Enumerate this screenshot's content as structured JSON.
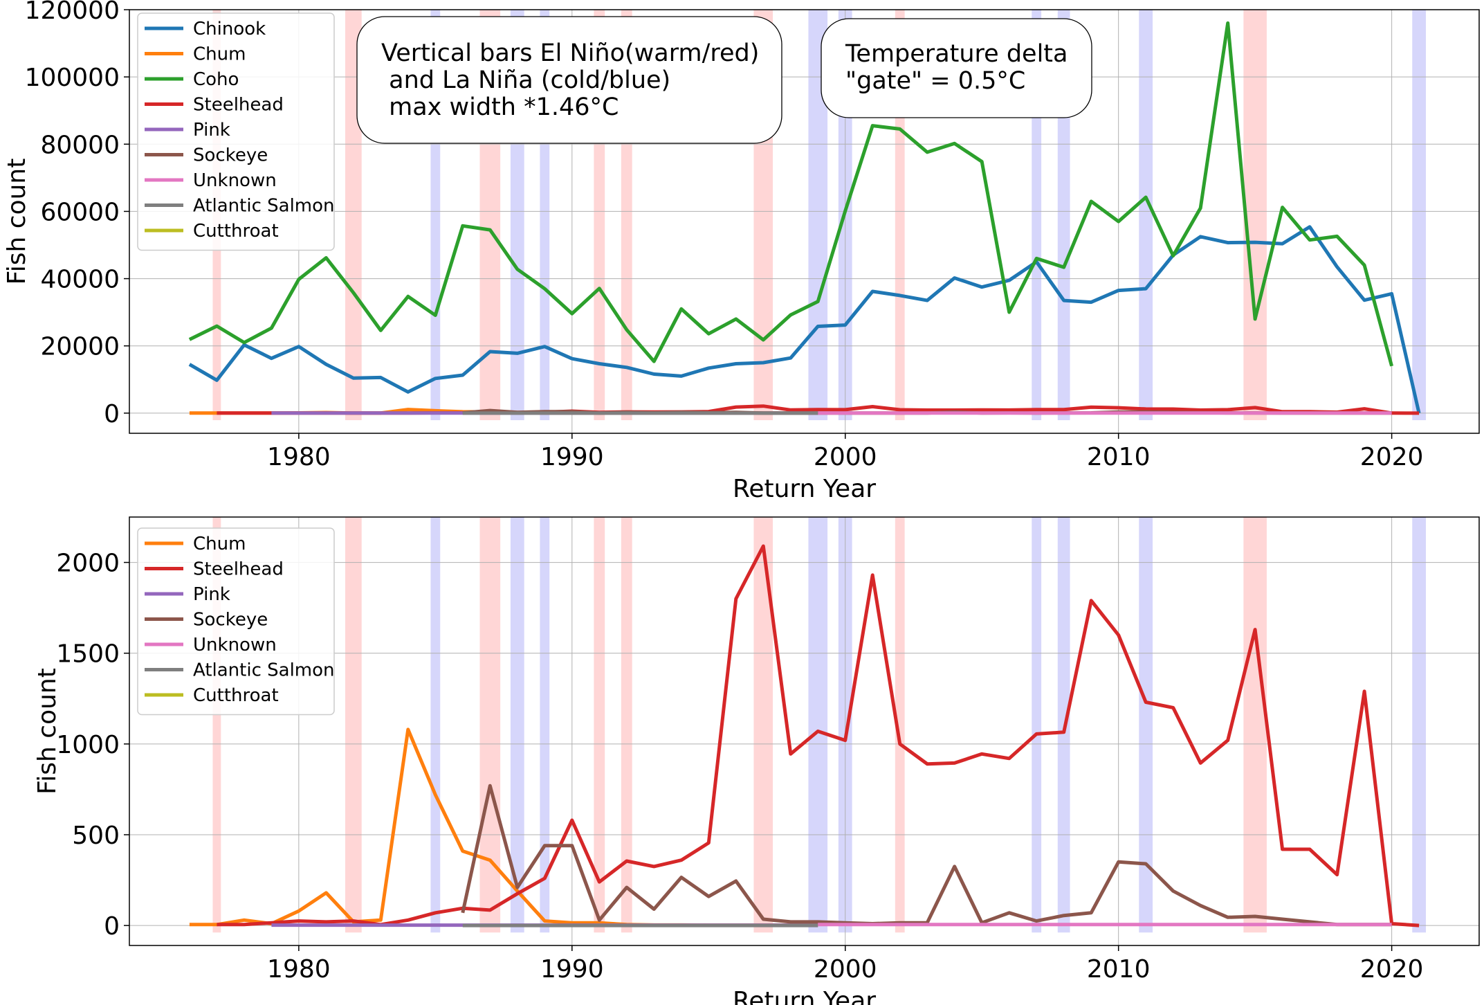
{
  "chart_data": [
    {
      "type": "line",
      "title": "",
      "xlabel": "Return Year",
      "ylabel": "Fish count",
      "xlim": [
        1973.8,
        2023.2
      ],
      "ylim": [
        -6000,
        120000
      ],
      "xticks": [
        1980,
        1990,
        2000,
        2010,
        2020
      ],
      "yticks": [
        0,
        20000,
        40000,
        60000,
        80000,
        100000,
        120000
      ],
      "grid": true,
      "legend_position": "upper-left",
      "annotations": [
        {
          "id": "bars-note",
          "lines": [
            "Vertical bars El Niño(warm/red)",
            " and La Niña (cold/blue)",
            " max width *1.46°C"
          ]
        },
        {
          "id": "gate-note",
          "lines": [
            "Temperature delta",
            "\"gate\" = 0.5°C"
          ]
        }
      ],
      "series": [
        {
          "name": "Chinook",
          "color": "#1f77b4",
          "x": [
            1976,
            1977,
            1978,
            1979,
            1980,
            1981,
            1982,
            1983,
            1984,
            1985,
            1986,
            1987,
            1988,
            1989,
            1990,
            1991,
            1992,
            1993,
            1994,
            1995,
            1996,
            1997,
            1998,
            1999,
            2000,
            2001,
            2002,
            2003,
            2004,
            2005,
            2006,
            2007,
            2008,
            2009,
            2010,
            2011,
            2012,
            2013,
            2014,
            2015,
            2016,
            2017,
            2018,
            2019,
            2020,
            2021
          ],
          "y": [
            14500,
            9800,
            20300,
            16300,
            19800,
            14500,
            10400,
            10600,
            6300,
            10300,
            11300,
            18300,
            17800,
            19800,
            16200,
            14700,
            13600,
            11600,
            11000,
            13400,
            14700,
            15000,
            16400,
            25800,
            26200,
            36200,
            35000,
            33500,
            40200,
            37500,
            39500,
            45000,
            33500,
            33000,
            36500,
            37000,
            47000,
            52500,
            50700,
            50800,
            50400,
            55400,
            43500,
            33600,
            35500,
            0
          ]
        },
        {
          "name": "Chum",
          "color": "#ff7f0e",
          "x": [
            1976,
            1977,
            1978,
            1979,
            1980,
            1981,
            1982,
            1983,
            1984,
            1985,
            1986,
            1987,
            1988,
            1989,
            1990,
            1991,
            1992,
            1993,
            1994,
            1995,
            1996,
            1997,
            1998,
            1999
          ],
          "y": [
            5,
            5,
            30,
            10,
            80,
            180,
            20,
            30,
            1080,
            720,
            410,
            360,
            190,
            25,
            15,
            15,
            5,
            3,
            3,
            2,
            2,
            2,
            2,
            2
          ]
        },
        {
          "name": "Coho",
          "color": "#2ca02c",
          "x": [
            1976,
            1977,
            1978,
            1979,
            1980,
            1981,
            1982,
            1983,
            1984,
            1985,
            1986,
            1987,
            1988,
            1989,
            1990,
            1991,
            1992,
            1993,
            1994,
            1995,
            1996,
            1997,
            1998,
            1999,
            2000,
            2001,
            2002,
            2003,
            2004,
            2005,
            2006,
            2007,
            2008,
            2009,
            2010,
            2011,
            2012,
            2013,
            2014,
            2015,
            2016,
            2017,
            2018,
            2019,
            2020
          ],
          "y": [
            21900,
            25900,
            21000,
            25300,
            39800,
            46200,
            35800,
            24600,
            34700,
            29100,
            55700,
            54500,
            42800,
            37000,
            29600,
            37100,
            24800,
            15400,
            31000,
            23600,
            28000,
            21800,
            29200,
            33200,
            60100,
            85500,
            84500,
            77600,
            80200,
            74800,
            30000,
            46000,
            43400,
            63000,
            57000,
            64200,
            46800,
            61000,
            116000,
            28000,
            61200,
            51500,
            52600,
            44000,
            14000
          ]
        },
        {
          "name": "Steelhead",
          "color": "#d62728",
          "x": [
            1977,
            1978,
            1979,
            1980,
            1981,
            1982,
            1983,
            1984,
            1985,
            1986,
            1987,
            1988,
            1989,
            1990,
            1991,
            1992,
            1993,
            1994,
            1995,
            1996,
            1997,
            1998,
            1999,
            2000,
            2001,
            2002,
            2003,
            2004,
            2005,
            2006,
            2007,
            2008,
            2009,
            2010,
            2011,
            2012,
            2013,
            2014,
            2015,
            2016,
            2017,
            2018,
            2019,
            2020,
            2021
          ],
          "y": [
            5,
            5,
            15,
            25,
            20,
            25,
            5,
            30,
            70,
            95,
            85,
            175,
            260,
            580,
            240,
            355,
            325,
            360,
            455,
            1800,
            2090,
            945,
            1070,
            1020,
            1930,
            1000,
            890,
            895,
            945,
            920,
            1055,
            1065,
            1790,
            1600,
            1230,
            1200,
            895,
            1020,
            1630,
            420,
            420,
            280,
            1290,
            10,
            0
          ]
        },
        {
          "name": "Pink",
          "color": "#9467bd",
          "x": [
            1979,
            1980,
            1981,
            1982,
            1983,
            1984,
            1985,
            1986,
            1987,
            1988,
            1989,
            1990,
            1991,
            1992,
            1993,
            1994,
            1995,
            1996,
            1997,
            1998,
            1999
          ],
          "y": [
            2,
            2,
            2,
            2,
            2,
            2,
            2,
            2,
            2,
            2,
            2,
            2,
            2,
            2,
            2,
            2,
            2,
            2,
            2,
            2,
            2
          ]
        },
        {
          "name": "Sockeye",
          "color": "#8c564b",
          "x": [
            1986,
            1987,
            1988,
            1989,
            1990,
            1991,
            1992,
            1993,
            1994,
            1995,
            1996,
            1997,
            1998,
            1999,
            2000,
            2001,
            2002,
            2003,
            2004,
            2005,
            2006,
            2007,
            2008,
            2009,
            2010,
            2011,
            2012,
            2013,
            2014,
            2015,
            2016,
            2017,
            2018,
            2019,
            2020
          ],
          "y": [
            70,
            770,
            210,
            440,
            440,
            30,
            210,
            90,
            265,
            160,
            245,
            35,
            20,
            20,
            15,
            10,
            15,
            15,
            325,
            15,
            70,
            25,
            55,
            70,
            350,
            340,
            190,
            110,
            45,
            50,
            35,
            20,
            5,
            5,
            5
          ]
        },
        {
          "name": "Unknown",
          "color": "#e377c2",
          "x": [
            1999,
            2000,
            2001,
            2002,
            2003,
            2004,
            2005,
            2006,
            2007,
            2008,
            2009,
            2010,
            2011,
            2012,
            2013,
            2014,
            2015,
            2016,
            2017,
            2018,
            2019,
            2020
          ],
          "y": [
            5,
            5,
            5,
            5,
            5,
            5,
            5,
            5,
            5,
            5,
            5,
            5,
            5,
            5,
            5,
            5,
            5,
            5,
            5,
            5,
            5,
            5
          ]
        },
        {
          "name": "Atlantic Salmon",
          "color": "#7f7f7f",
          "x": [
            1986,
            1987,
            1988,
            1989,
            1990,
            1991,
            1992,
            1993,
            1994,
            1995,
            1996,
            1997,
            1998,
            1999
          ],
          "y": [
            0,
            0,
            0,
            0,
            0,
            0,
            0,
            0,
            0,
            0,
            0,
            0,
            0,
            0
          ]
        },
        {
          "name": "Cutthroat",
          "color": "#bcbd22",
          "x": [],
          "y": []
        }
      ]
    },
    {
      "type": "line",
      "title": "",
      "xlabel": "Return Year",
      "ylabel": "Fish count",
      "xlim": [
        1973.8,
        2023.2
      ],
      "ylim": [
        -110,
        2250
      ],
      "xticks": [
        1980,
        1990,
        2000,
        2010,
        2020
      ],
      "yticks": [
        0,
        500,
        1000,
        1500,
        2000
      ],
      "grid": true,
      "legend_position": "upper-left",
      "series_refs": [
        "Chum",
        "Steelhead",
        "Pink",
        "Sockeye",
        "Unknown",
        "Atlantic Salmon",
        "Cutthroat"
      ]
    }
  ],
  "enso_bars": [
    {
      "year": 1977,
      "kind": "warm",
      "width_yr": 0.3
    },
    {
      "year": 1982,
      "kind": "warm",
      "width_yr": 0.6
    },
    {
      "year": 1985,
      "kind": "cold",
      "width_yr": 0.35
    },
    {
      "year": 1987,
      "kind": "warm",
      "width_yr": 0.75
    },
    {
      "year": 1988,
      "kind": "cold",
      "width_yr": 0.5
    },
    {
      "year": 1989,
      "kind": "cold",
      "width_yr": 0.35
    },
    {
      "year": 1991,
      "kind": "warm",
      "width_yr": 0.4
    },
    {
      "year": 1992,
      "kind": "warm",
      "width_yr": 0.4
    },
    {
      "year": 1997,
      "kind": "warm",
      "width_yr": 0.7
    },
    {
      "year": 1999,
      "kind": "cold",
      "width_yr": 0.7
    },
    {
      "year": 2000,
      "kind": "cold",
      "width_yr": 0.5
    },
    {
      "year": 2002,
      "kind": "warm",
      "width_yr": 0.35
    },
    {
      "year": 2007,
      "kind": "cold",
      "width_yr": 0.35
    },
    {
      "year": 2008,
      "kind": "cold",
      "width_yr": 0.45
    },
    {
      "year": 2011,
      "kind": "cold",
      "width_yr": 0.5
    },
    {
      "year": 2015,
      "kind": "warm",
      "width_yr": 0.85
    },
    {
      "year": 2021,
      "kind": "cold",
      "width_yr": 0.5
    }
  ],
  "colors": {
    "warm": "#ffd6d6",
    "cold": "#d6d6fb",
    "grid": "#b0b0b0",
    "axis": "#000000"
  }
}
